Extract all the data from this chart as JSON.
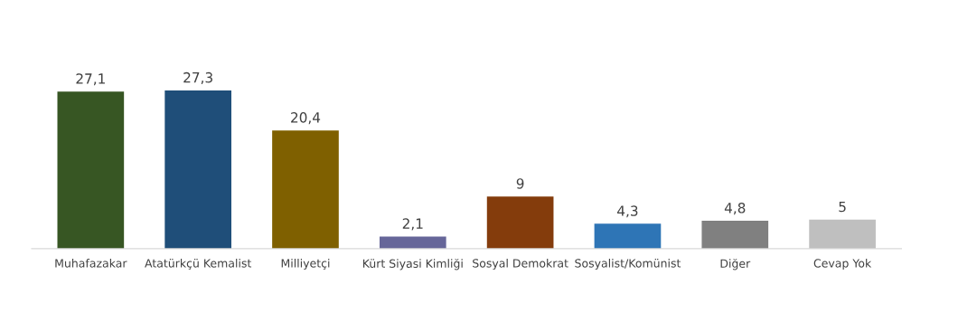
{
  "chart_data": {
    "type": "bar",
    "categories": [
      "Muhafazakar",
      "Atatürkçü Kemalist",
      "Milliyetçi",
      "Kürt Siyasi Kimliği",
      "Sosyal Demokrat",
      "Sosyalist/Komünist",
      "Diğer",
      "Cevap Yok"
    ],
    "values": [
      27.1,
      27.3,
      20.4,
      2.1,
      9,
      4.3,
      4.8,
      5
    ],
    "value_labels": [
      "27,1",
      "27,3",
      "20,4",
      "2,1",
      "9",
      "4,3",
      "4,8",
      "5"
    ],
    "colors": [
      "#375623",
      "#1f4e79",
      "#7f6000",
      "#666699",
      "#843c0c",
      "#2e75b6",
      "#808080",
      "#bfbfbf"
    ],
    "grid": false,
    "legend": false
  }
}
